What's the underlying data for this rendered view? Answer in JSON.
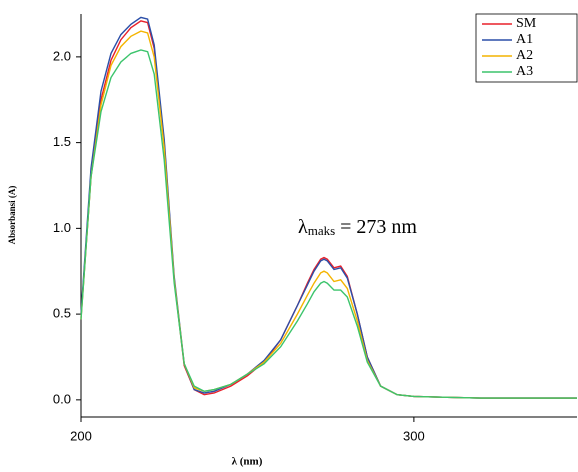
{
  "chart_data": {
    "type": "line",
    "x_label": "λ (nm)",
    "y_label": "Absorbansi (A)",
    "annotation": {
      "symbol": "λ",
      "subscript": "maks",
      "text": "= 273 nm"
    },
    "x": [
      200,
      203,
      206,
      209,
      212,
      215,
      218,
      220,
      222,
      225,
      228,
      231,
      234,
      237,
      240,
      245,
      250,
      255,
      260,
      265,
      268,
      270,
      272,
      273,
      274,
      276,
      278,
      280,
      283,
      286,
      290,
      295,
      300,
      310,
      320,
      330,
      340,
      349
    ],
    "series": [
      {
        "name": "SM",
        "color": "#e8202a",
        "values": [
          0.48,
          1.3,
          1.75,
          1.98,
          2.1,
          2.17,
          2.21,
          2.2,
          2.05,
          1.5,
          0.7,
          0.2,
          0.06,
          0.03,
          0.04,
          0.08,
          0.14,
          0.22,
          0.35,
          0.55,
          0.68,
          0.76,
          0.82,
          0.83,
          0.82,
          0.77,
          0.78,
          0.72,
          0.5,
          0.25,
          0.08,
          0.03,
          0.02,
          0.015,
          0.01,
          0.01,
          0.01,
          0.01
        ]
      },
      {
        "name": "A1",
        "color": "#2b4fa8",
        "values": [
          0.5,
          1.35,
          1.8,
          2.02,
          2.13,
          2.19,
          2.23,
          2.22,
          2.07,
          1.52,
          0.72,
          0.21,
          0.06,
          0.04,
          0.05,
          0.09,
          0.15,
          0.23,
          0.35,
          0.55,
          0.67,
          0.75,
          0.81,
          0.82,
          0.81,
          0.76,
          0.77,
          0.71,
          0.5,
          0.25,
          0.08,
          0.03,
          0.02,
          0.015,
          0.01,
          0.01,
          0.01,
          0.01
        ]
      },
      {
        "name": "A2",
        "color": "#f4b400",
        "values": [
          0.47,
          1.3,
          1.72,
          1.95,
          2.06,
          2.12,
          2.15,
          2.14,
          2.0,
          1.47,
          0.7,
          0.21,
          0.07,
          0.05,
          0.06,
          0.09,
          0.15,
          0.22,
          0.33,
          0.5,
          0.61,
          0.68,
          0.74,
          0.75,
          0.74,
          0.69,
          0.7,
          0.65,
          0.46,
          0.23,
          0.08,
          0.03,
          0.02,
          0.015,
          0.01,
          0.01,
          0.01,
          0.01
        ]
      },
      {
        "name": "A3",
        "color": "#3cc46c",
        "values": [
          0.47,
          1.3,
          1.68,
          1.88,
          1.97,
          2.02,
          2.04,
          2.03,
          1.9,
          1.4,
          0.68,
          0.21,
          0.08,
          0.05,
          0.06,
          0.09,
          0.15,
          0.21,
          0.31,
          0.46,
          0.56,
          0.63,
          0.68,
          0.69,
          0.68,
          0.64,
          0.64,
          0.6,
          0.43,
          0.22,
          0.08,
          0.03,
          0.02,
          0.015,
          0.01,
          0.01,
          0.01,
          0.01
        ]
      }
    ],
    "xlim": [
      200,
      349
    ],
    "xticks": [
      200,
      300
    ],
    "ylim": [
      -0.1,
      2.25
    ],
    "yticks": [
      {
        "value": 0,
        "label": "0.0"
      },
      {
        "value": 0.5,
        "label": "0.5"
      },
      {
        "value": 1,
        "label": "1.0"
      },
      {
        "value": 1.5,
        "label": "1.5"
      },
      {
        "value": 2,
        "label": "2.0"
      }
    ],
    "legend": "top-right"
  }
}
